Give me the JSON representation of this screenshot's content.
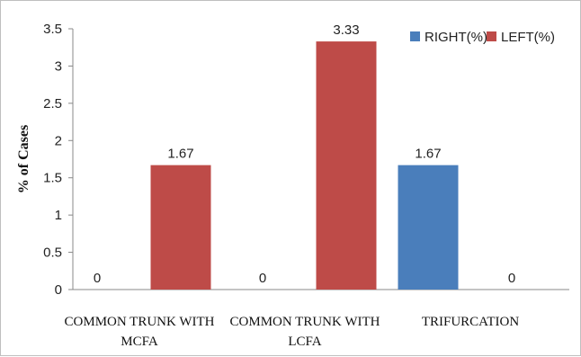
{
  "chart_data": {
    "type": "bar",
    "categories": [
      [
        "COMMON TRUNK WITH",
        "MCFA"
      ],
      [
        "COMMON TRUNK WITH",
        "LCFA"
      ],
      [
        "TRIFURCATION"
      ]
    ],
    "series": [
      {
        "name": "RIGHT(%)",
        "color": "#4a7ebb",
        "values": [
          0,
          0,
          1.67
        ],
        "labels": [
          "0",
          "0",
          "1.67"
        ]
      },
      {
        "name": "LEFT(%)",
        "color": "#be4b48",
        "values": [
          1.67,
          3.33,
          0
        ],
        "labels": [
          "1.67",
          "3.33",
          "0"
        ]
      }
    ],
    "ylabel": "% of Cases",
    "ylim": [
      0,
      3.5
    ],
    "yticks": [
      "0",
      "0.5",
      "1",
      "1.5",
      "2",
      "2.5",
      "3",
      "3.5"
    ],
    "grid": false,
    "legend_position": "top-right"
  }
}
